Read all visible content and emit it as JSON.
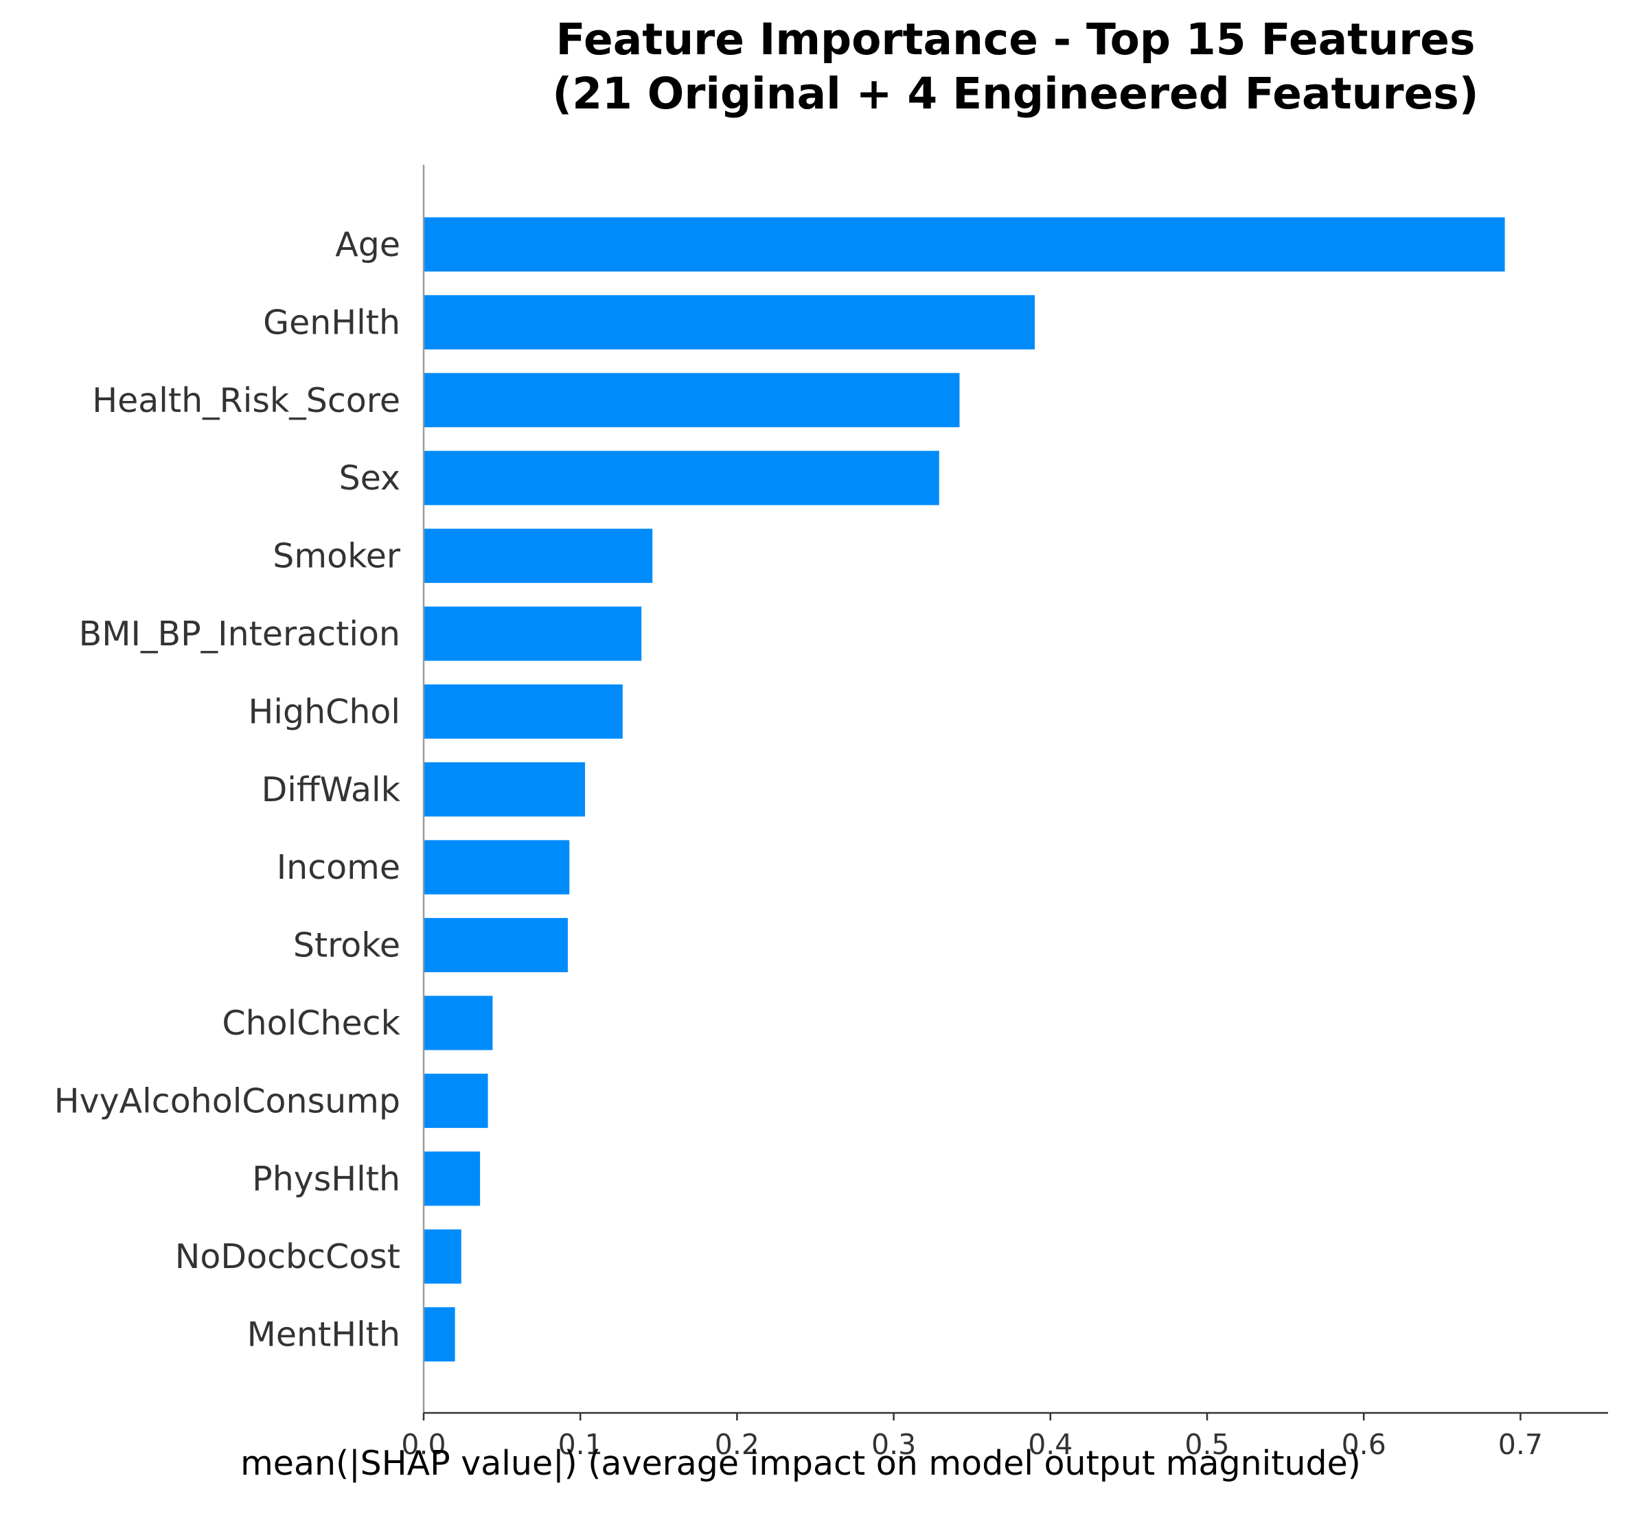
{
  "chart_data": {
    "type": "bar",
    "orientation": "horizontal",
    "title_lines": [
      "Feature Importance - Top 15 Features",
      "(21 Original + 4 Engineered Features)"
    ],
    "xlabel": "mean(|SHAP value|) (average impact on model output magnitude)",
    "ylabel": "",
    "xlim": [
      0,
      0.725
    ],
    "xticks": [
      0.0,
      0.1,
      0.2,
      0.3,
      0.4,
      0.5,
      0.6,
      0.7
    ],
    "xtick_labels": [
      "0.0",
      "0.1",
      "0.2",
      "0.3",
      "0.4",
      "0.5",
      "0.6",
      "0.7"
    ],
    "categories": [
      "Age",
      "GenHlth",
      "Health_Risk_Score",
      "Sex",
      "Smoker",
      "BMI_BP_Interaction",
      "HighChol",
      "DiffWalk",
      "Income",
      "Stroke",
      "CholCheck",
      "HvyAlcoholConsump",
      "PhysHlth",
      "NoDocbcCost",
      "MentHlth"
    ],
    "values": [
      0.69,
      0.39,
      0.342,
      0.329,
      0.146,
      0.139,
      0.127,
      0.103,
      0.093,
      0.092,
      0.044,
      0.041,
      0.036,
      0.024,
      0.02
    ],
    "bar_color": "#008bfb",
    "grid": false,
    "legend": "none"
  }
}
